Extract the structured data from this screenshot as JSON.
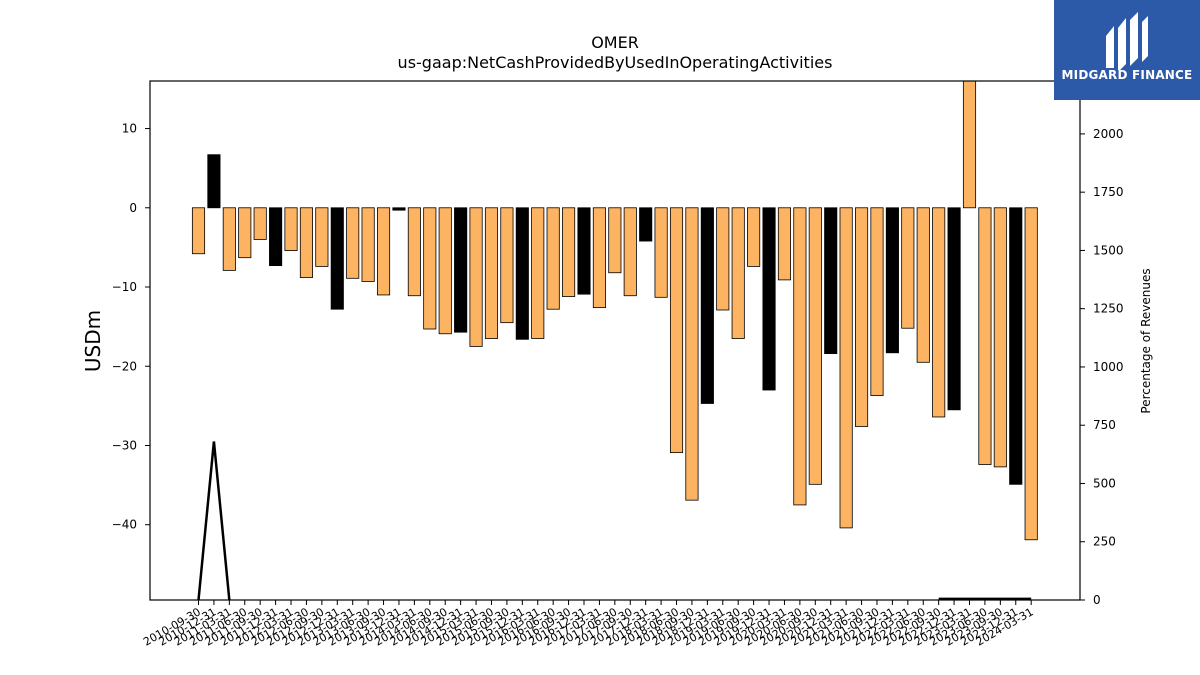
{
  "chart_data": {
    "type": "bar",
    "title": "OMER",
    "subtitle": "us-gaap:NetCashProvidedByUsedInOperatingActivities",
    "ylabel": "USDm",
    "ylabel_right": "Percentage of Revenues",
    "ylim": [
      -49.5,
      16
    ],
    "ylim_right": [
      0,
      2227
    ],
    "yticks": [
      -40,
      -30,
      -20,
      -10,
      0,
      10
    ],
    "yticks_right": [
      0,
      250,
      500,
      750,
      1000,
      1250,
      1500,
      1750,
      2000
    ],
    "categories": [
      "2010-09-30",
      "2010-12-31",
      "2011-03-31",
      "2011-06-30",
      "2011-09-30",
      "2011-12-31",
      "2012-03-31",
      "2012-06-30",
      "2012-09-30",
      "2012-12-31",
      "2013-03-31",
      "2013-06-30",
      "2013-09-30",
      "2013-12-31",
      "2014-03-31",
      "2014-06-30",
      "2014-09-30",
      "2014-12-31",
      "2015-03-31",
      "2015-06-30",
      "2015-09-30",
      "2015-12-31",
      "2016-03-31",
      "2016-06-30",
      "2016-09-30",
      "2016-12-31",
      "2017-03-31",
      "2017-06-30",
      "2017-09-30",
      "2017-12-31",
      "2018-03-31",
      "2018-06-30",
      "2018-09-30",
      "2018-12-31",
      "2019-03-31",
      "2019-06-30",
      "2019-09-30",
      "2019-12-31",
      "2020-03-31",
      "2020-06-30",
      "2020-09-30",
      "2020-12-31",
      "2021-03-31",
      "2021-06-30",
      "2021-09-30",
      "2021-12-31",
      "2022-03-31",
      "2022-06-30",
      "2022-09-30",
      "2022-12-31",
      "2023-03-31",
      "2023-06-30",
      "2023-09-30",
      "2023-12-31",
      "2024-03-31"
    ],
    "values": [
      -5.8,
      6.7,
      -7.9,
      -6.3,
      -4.0,
      -7.3,
      -5.4,
      -8.8,
      -7.4,
      -12.8,
      -8.9,
      -9.3,
      -11.0,
      -0.3,
      -11.1,
      -15.3,
      -15.9,
      -15.7,
      -17.5,
      -16.5,
      -14.5,
      -16.6,
      -16.5,
      -12.8,
      -11.2,
      -10.9,
      -12.6,
      -8.2,
      -11.1,
      -4.2,
      -11.3,
      -30.9,
      -36.9,
      -24.7,
      -12.9,
      -16.5,
      -7.4,
      -23.0,
      -9.1,
      -37.5,
      -34.9,
      -18.4,
      -40.4,
      -27.6,
      -23.7,
      -18.3,
      -15.2,
      -19.5,
      -26.4,
      -25.5,
      16.0,
      -32.4,
      -32.7,
      -34.9,
      -41.9
    ],
    "highlight_indices": [
      1,
      5,
      9,
      13,
      17,
      21,
      25,
      29,
      33,
      37,
      41,
      45,
      49,
      53
    ],
    "colors": {
      "normal": "#fdb462",
      "highlight": "#000000",
      "edge": "#000000"
    },
    "line_series": {
      "name": "Percentage of Revenues",
      "axis": "right",
      "x": [
        "2010-09-30",
        "2010-12-31",
        "2011-03-31",
        "2022-09-30",
        "2022-12-31",
        "2023-03-31",
        "2023-06-30",
        "2023-09-30",
        "2023-12-31",
        "2024-03-31"
      ],
      "values": [
        0,
        680,
        0,
        5,
        5,
        5,
        5,
        5,
        5,
        5
      ]
    }
  },
  "logo": {
    "text": "MIDGARD FINANCE",
    "icon": "midgard-logo-icon"
  }
}
